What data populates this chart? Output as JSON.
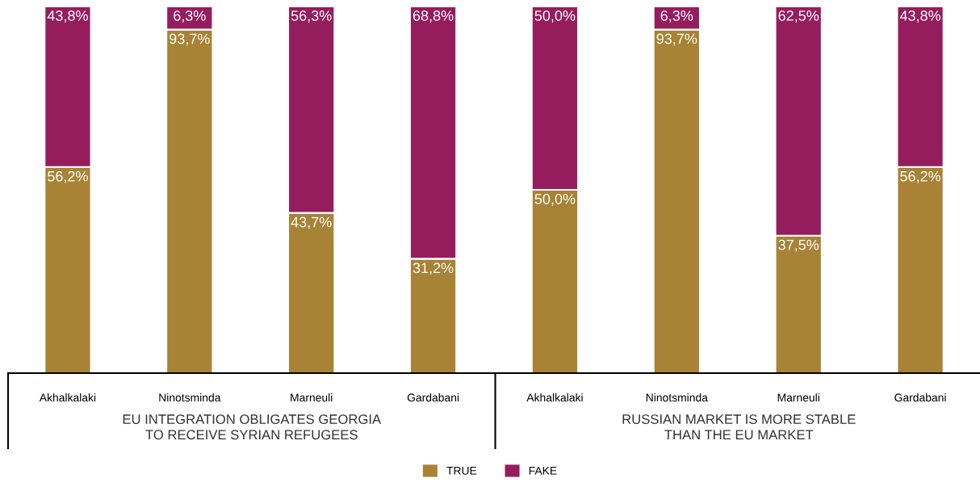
{
  "chart_data": {
    "type": "bar",
    "stacked": true,
    "categories": [
      "Akhalkalaki",
      "Ninotsminda",
      "Marneuli",
      "Gardabani",
      "Akhalkalaki",
      "Ninotsminda",
      "Marneuli",
      "Gardabani"
    ],
    "series": [
      {
        "name": "TRUE",
        "color": "#a88235",
        "values": [
          56.2,
          93.7,
          43.7,
          31.2,
          50.0,
          93.7,
          37.5,
          56.2
        ],
        "value_labels": [
          "56,2%",
          "93,7%",
          "43,7%",
          "31,2%",
          "50,0%",
          "93,7%",
          "37,5%",
          "56,2%"
        ]
      },
      {
        "name": "FAKE",
        "color": "#951d5e",
        "values": [
          43.8,
          6.3,
          56.3,
          68.8,
          50.0,
          6.3,
          62.5,
          43.8
        ],
        "value_labels": [
          "43,8%",
          "6,3%",
          "56,3%",
          "68,8%",
          "50,0%",
          "6,3%",
          "62,5%",
          "43,8%"
        ]
      }
    ],
    "annotations": [
      "EU INTEGRATION OBLIGATES GEORGIA\nTO RECEIVE SYRIAN REFUGEES",
      "RUSSIAN MARKET IS MORE STABLE\nTHAN THE EU MARKET"
    ],
    "ylim": [
      0,
      100
    ],
    "tick_labels": "x",
    "grid": false,
    "legend": "bottom"
  }
}
